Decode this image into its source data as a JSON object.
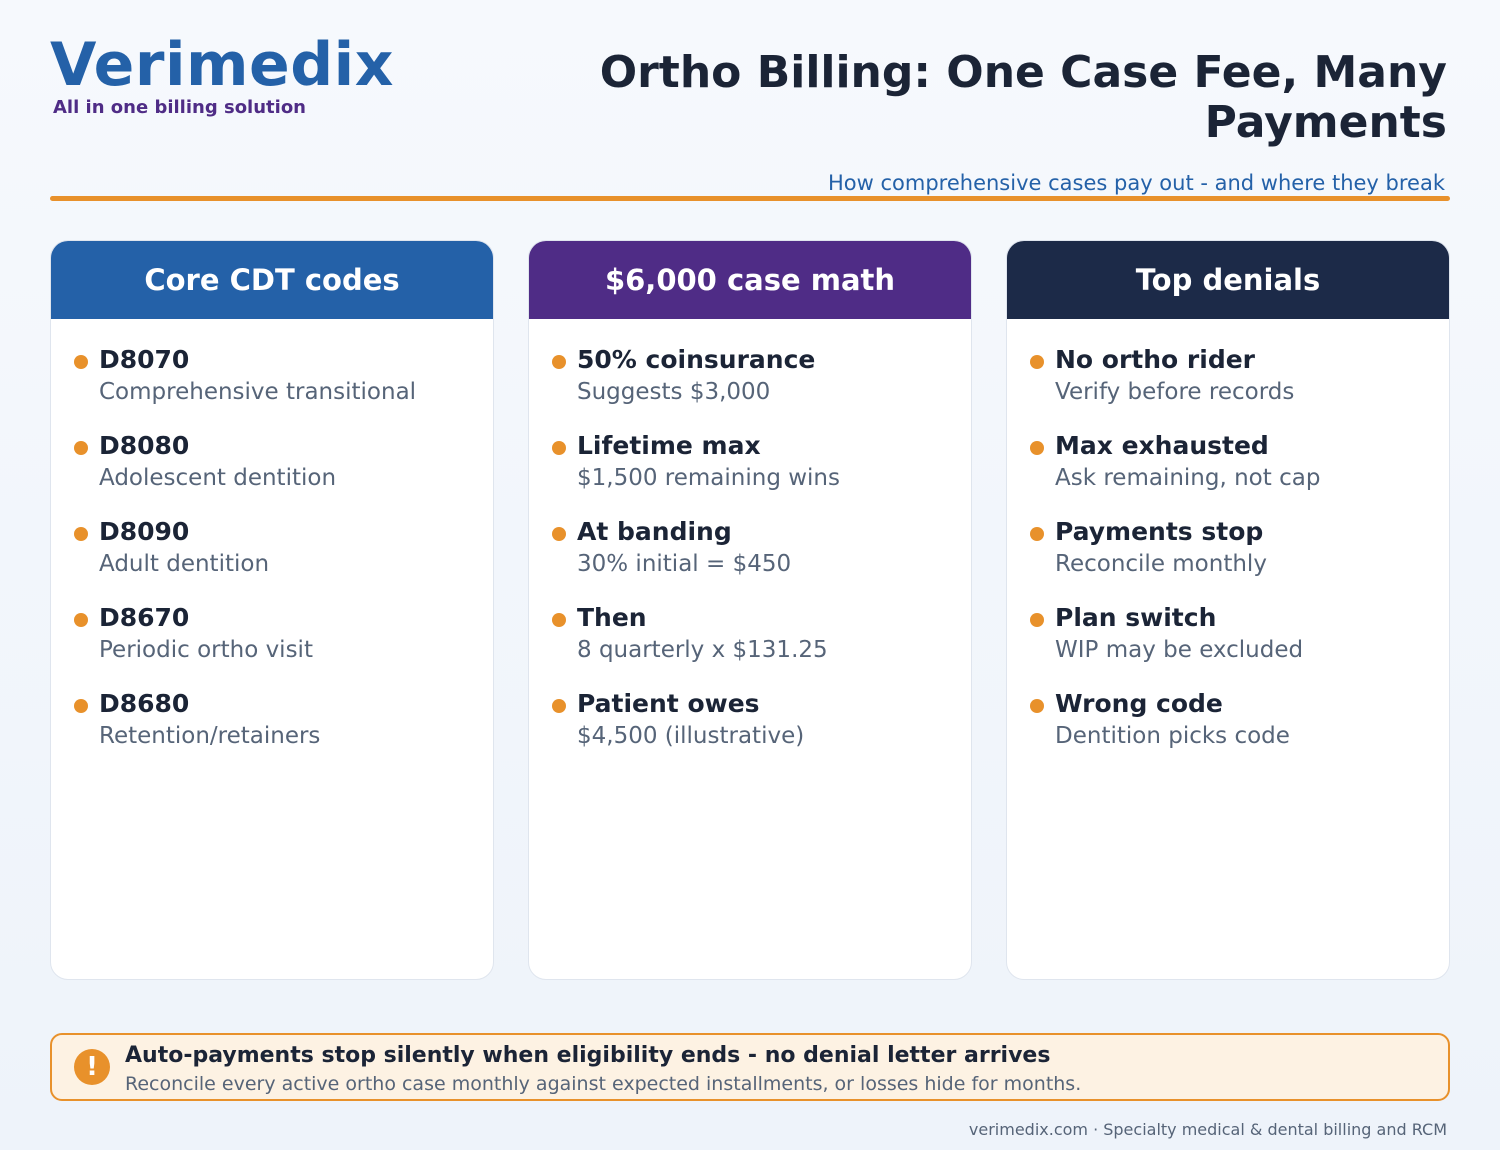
{
  "brand": {
    "name": "Verimedix",
    "tagline": "All in one billing solution"
  },
  "header": {
    "title": "Ortho Billing: One Case Fee, Many Payments",
    "subtitle": "How comprehensive cases pay out - and where they break"
  },
  "colors": {
    "accent": "#e8912b",
    "blue": "#2461a8",
    "purple": "#4f2c86",
    "navy": "#1c2a48"
  },
  "cards": [
    {
      "title": "Core CDT codes",
      "items": [
        {
          "title": "D8070",
          "sub": "Comprehensive transitional"
        },
        {
          "title": "D8080",
          "sub": "Adolescent dentition"
        },
        {
          "title": "D8090",
          "sub": "Adult dentition"
        },
        {
          "title": "D8670",
          "sub": "Periodic ortho visit"
        },
        {
          "title": "D8680",
          "sub": "Retention/retainers"
        }
      ]
    },
    {
      "title": "$6,000 case math",
      "items": [
        {
          "title": "50% coinsurance",
          "sub": "Suggests $3,000"
        },
        {
          "title": "Lifetime max",
          "sub": "$1,500 remaining wins"
        },
        {
          "title": "At banding",
          "sub": "30% initial = $450"
        },
        {
          "title": "Then",
          "sub": "8 quarterly x $131.25"
        },
        {
          "title": "Patient owes",
          "sub": "$4,500 (illustrative)"
        }
      ]
    },
    {
      "title": "Top denials",
      "items": [
        {
          "title": "No ortho rider",
          "sub": "Verify before records"
        },
        {
          "title": "Max exhausted",
          "sub": "Ask remaining, not cap"
        },
        {
          "title": "Payments stop",
          "sub": "Reconcile monthly"
        },
        {
          "title": "Plan switch",
          "sub": "WIP may be excluded"
        },
        {
          "title": "Wrong code",
          "sub": "Dentition picks code"
        }
      ]
    }
  ],
  "alert": {
    "icon": "exclamation-icon",
    "icon_glyph": "!",
    "title": "Auto-payments stop silently when eligibility ends - no denial letter arrives",
    "sub": "Reconcile every active ortho case monthly against expected installments, or losses hide for months."
  },
  "footer": {
    "text": "verimedix.com · Specialty medical & dental billing and RCM"
  }
}
